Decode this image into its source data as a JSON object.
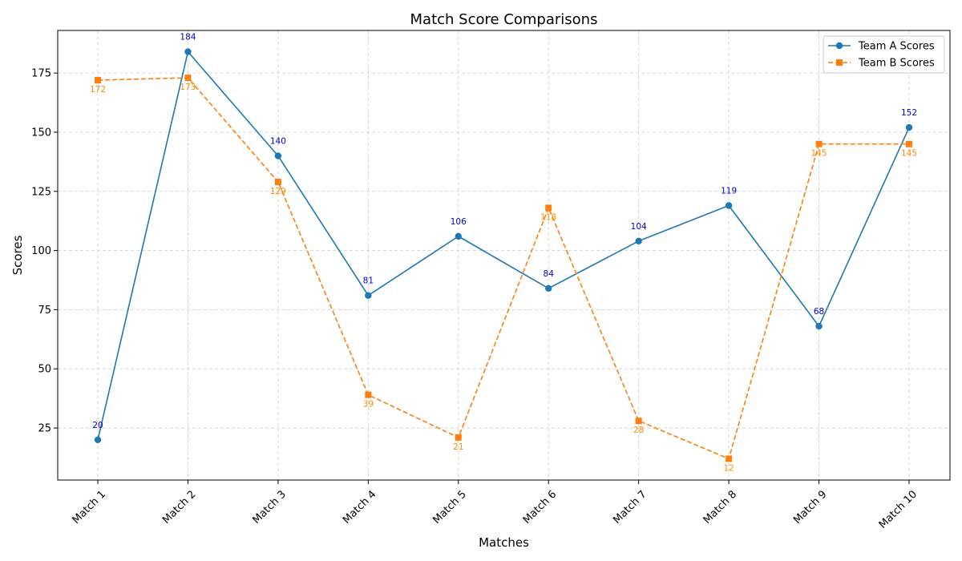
{
  "chart_data": {
    "type": "line",
    "title": "Match Score Comparisons",
    "xlabel": "Matches",
    "ylabel": "Scores",
    "categories": [
      "Match 1",
      "Match 2",
      "Match 3",
      "Match 4",
      "Match 5",
      "Match 6",
      "Match 7",
      "Match 8",
      "Match 9",
      "Match 10"
    ],
    "ylim": [
      3,
      193
    ],
    "yticks": [
      25,
      50,
      75,
      100,
      125,
      150,
      175
    ],
    "grid": true,
    "legend_position": "top-right",
    "series": [
      {
        "name": "Team A Scores",
        "values": [
          20,
          184,
          140,
          81,
          106,
          84,
          104,
          119,
          68,
          152
        ],
        "color": "#1f77b4",
        "label_color": "#0000cc",
        "line_style": "solid",
        "marker": "circle",
        "label_position": "above"
      },
      {
        "name": "Team B Scores",
        "values": [
          172,
          173,
          129,
          39,
          21,
          118,
          28,
          12,
          145,
          145
        ],
        "color": "#ff7f0e",
        "label_color": "#ff8c00",
        "line_style": "dashed",
        "marker": "square",
        "label_position": "below"
      }
    ]
  }
}
